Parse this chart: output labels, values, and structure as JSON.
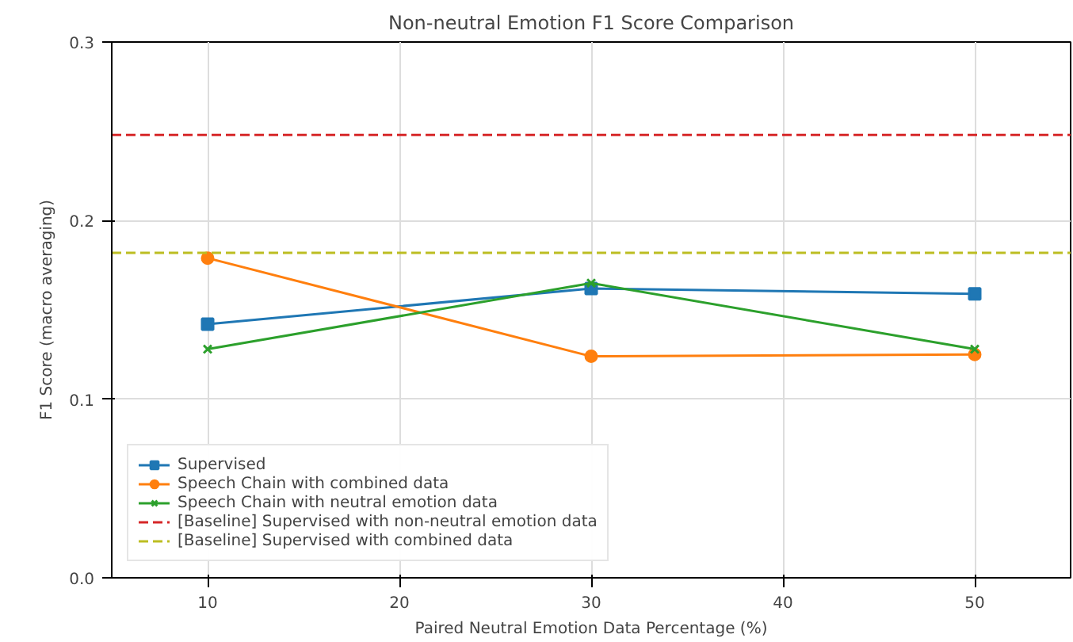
{
  "chart_data": {
    "type": "line",
    "title": "Non-neutral Emotion F1 Score Comparison",
    "xlabel": "Paired Neutral Emotion Data Percentage (%)",
    "ylabel": "F1 Score (macro averaging)",
    "x": [
      10,
      30,
      50
    ],
    "series": [
      {
        "name": "Supervised",
        "color": "#1f77b4",
        "marker": "square",
        "values": [
          0.142,
          0.162,
          0.159
        ]
      },
      {
        "name": "Speech Chain with combined data",
        "color": "#ff7f0e",
        "marker": "circle",
        "values": [
          0.179,
          0.124,
          0.125
        ]
      },
      {
        "name": "Speech Chain with neutral emotion data",
        "color": "#2ca02c",
        "marker": "cross",
        "values": [
          0.128,
          0.165,
          0.128
        ]
      }
    ],
    "ref_lines": [
      {
        "axis": "y",
        "value": 0.248,
        "label": "[Baseline] Supervised with non-neutral emotion data",
        "color": "#d62728",
        "line_style": "dashed"
      },
      {
        "axis": "y",
        "value": 0.182,
        "label": "[Baseline] Supervised with combined data",
        "color": "#bcbd22",
        "line_style": "dashed"
      }
    ],
    "xlim": [
      5,
      55
    ],
    "ylim": [
      0,
      0.3
    ],
    "xticks": [
      10,
      20,
      30,
      40,
      50
    ],
    "yticks": [
      {
        "value": 0,
        "label": "0.0"
      },
      0.1,
      0.2,
      0.3
    ],
    "grid": true,
    "legend": "bottom left",
    "line_style": "solid"
  }
}
